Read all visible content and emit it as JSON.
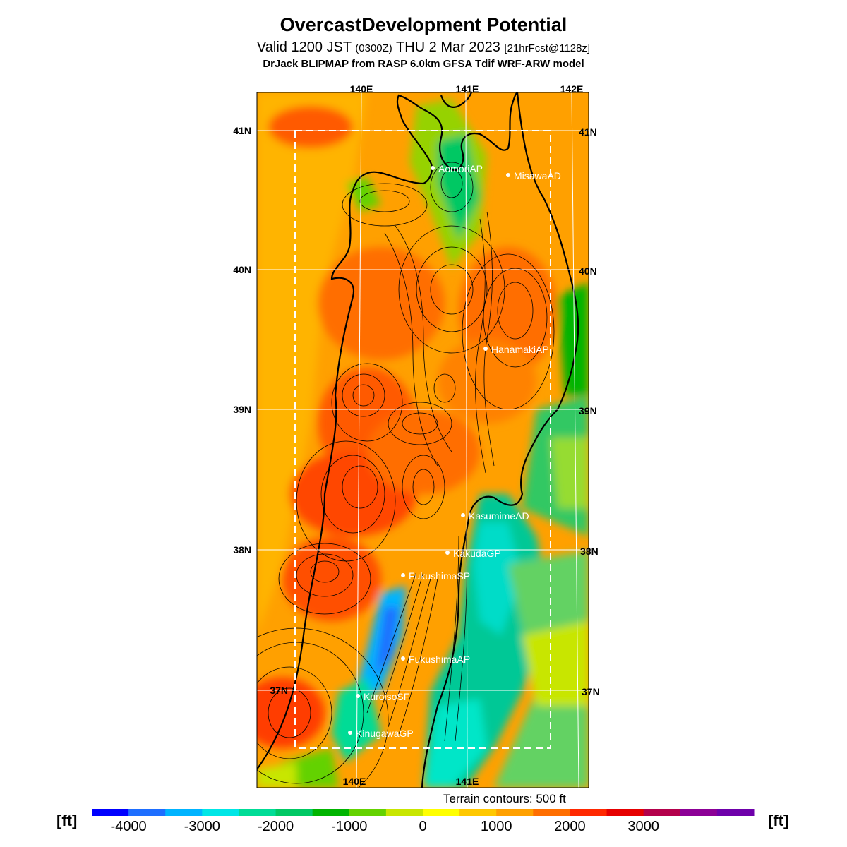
{
  "title": "OvercastDevelopment Potential",
  "subtitle": {
    "valid": "Valid 1200 JST",
    "utc": "(0300Z)",
    "date": "THU 2 Mar 2023",
    "forecast": "[21hrFcst@1128z]"
  },
  "model_line": "DrJack BLIPMAP from RASP 6.0km GFSA Tdif WRF-ARW model",
  "map": {
    "lon_labels_top": [
      "140E",
      "141E",
      "142E"
    ],
    "lon_labels_bottom": [
      "140E",
      "141E"
    ],
    "lat_labels": [
      "41N",
      "40N",
      "39N",
      "38N",
      "37N"
    ],
    "stations": [
      {
        "name": "AomoriAP"
      },
      {
        "name": "MisawaAD"
      },
      {
        "name": "HanamakiAP"
      },
      {
        "name": "KasumimeAD"
      },
      {
        "name": "KakudaGP"
      },
      {
        "name": "FukushimaSP"
      },
      {
        "name": "FukushimaAP"
      },
      {
        "name": "KuroisoSF"
      },
      {
        "name": "KinugawaGP"
      }
    ]
  },
  "contour_note": "Terrain contours: 500 ft",
  "colorbar": {
    "unit": "[ft]",
    "labels": [
      "-4000",
      "-3000",
      "-2000",
      "-1000",
      "0",
      "1000",
      "2000",
      "3000"
    ],
    "colors": [
      "#0000ff",
      "#1e6eff",
      "#00b4ff",
      "#00e6e6",
      "#00dc96",
      "#00c864",
      "#00b400",
      "#64d200",
      "#c8e600",
      "#ffff00",
      "#ffc800",
      "#ffa000",
      "#ff6e00",
      "#ff2800",
      "#e60000",
      "#b4004b",
      "#8c0096",
      "#6e00aa"
    ]
  }
}
